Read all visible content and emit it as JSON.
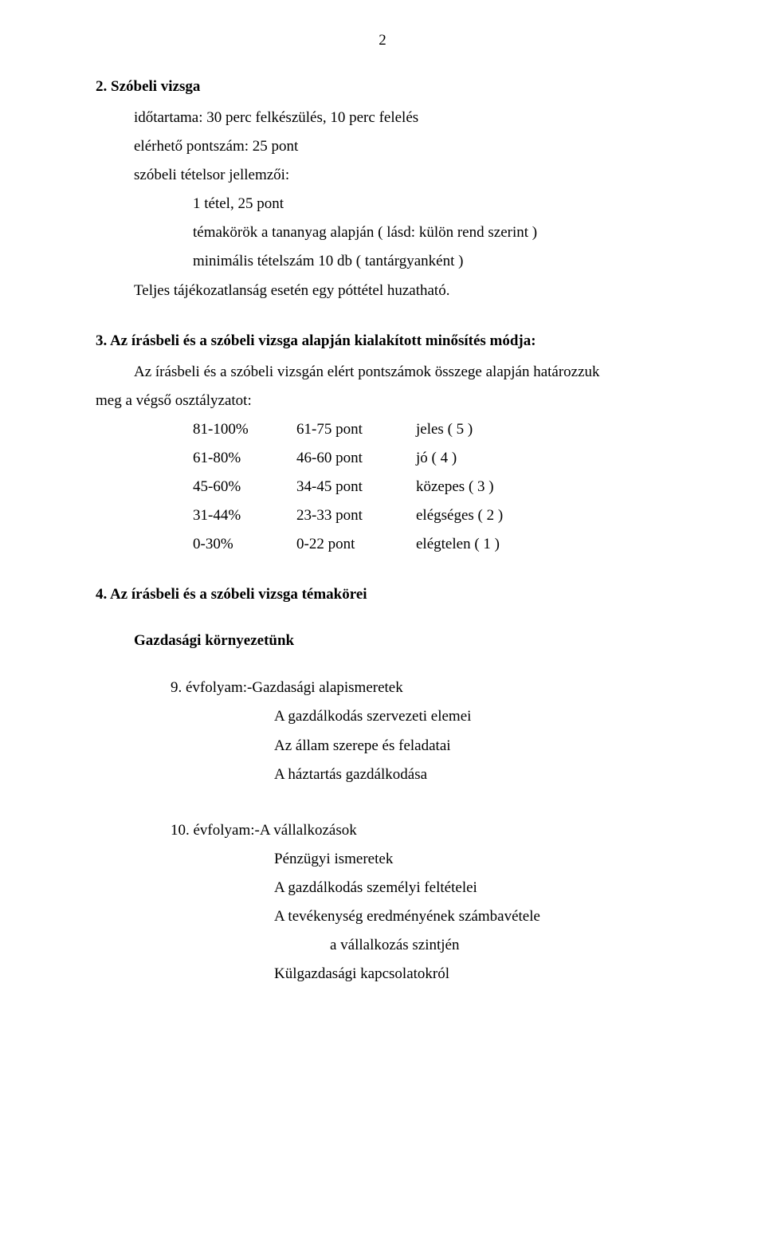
{
  "page_number": "2",
  "section2": {
    "title": "2. Szóbeli vizsga",
    "line1": "időtartama: 30 perc felkészülés, 10 perc felelés",
    "line2": "elérhető pontszám: 25 pont",
    "line3": "szóbeli tételsor jellemzői:",
    "line4": "1 tétel, 25 pont",
    "line5": "témakörök a tananyag alapján ( lásd: külön rend szerint )",
    "line6": "minimális tételszám 10 db ( tantárgyanként )",
    "line7": "Teljes tájékozatlanság esetén egy póttétel huzatható."
  },
  "section3": {
    "title": "3. Az írásbeli és a szóbeli vizsga alapján kialakított minősítés módja:",
    "lead": "Az írásbeli és a szóbeli vizsgán elért pontszámok összege alapján határozzuk",
    "lead2": "meg a végső osztályzatot:",
    "grades": [
      {
        "pct": "81-100%",
        "pts": "61-75 pont",
        "name": "jeles ( 5 )"
      },
      {
        "pct": "61-80%",
        "pts": "46-60 pont",
        "name": "jó ( 4 )"
      },
      {
        "pct": "45-60%",
        "pts": "34-45 pont",
        "name": "közepes ( 3 )"
      },
      {
        "pct": "31-44%",
        "pts": "23-33 pont",
        "name": "elégséges ( 2 )"
      },
      {
        "pct": "0-30%",
        "pts": "0-22 pont",
        "name": "elégtelen ( 1 )"
      }
    ]
  },
  "section4": {
    "title": "4. Az írásbeli és a szóbeli vizsga témakörei",
    "group_title": "Gazdasági környezetünk",
    "block1": {
      "title": "9. évfolyam:-Gazdasági alapismeretek",
      "items": [
        "A gazdálkodás szervezeti elemei",
        "Az állam szerepe és feladatai",
        "A háztartás gazdálkodása"
      ]
    },
    "block2": {
      "title": "10. évfolyam:-A vállalkozások",
      "items": [
        "Pénzügyi ismeretek",
        "A gazdálkodás személyi feltételei",
        "A tevékenység eredményének számbavétele"
      ],
      "item_center": "a vállalkozás szintjén",
      "item_last": "Külgazdasági kapcsolatokról"
    }
  }
}
